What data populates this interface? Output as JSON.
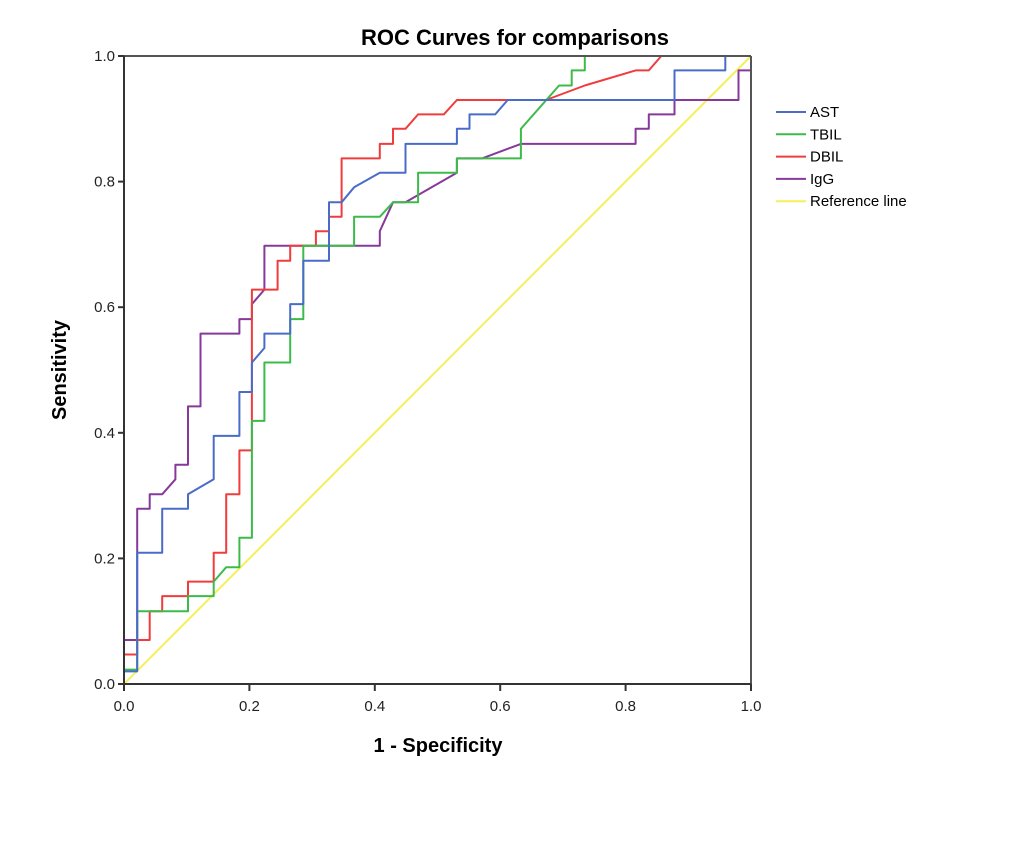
{
  "chart_data": {
    "type": "line",
    "title": "ROC Curves for comparisons",
    "xlabel": "1 - Specificity",
    "ylabel": "Sensitivity",
    "xlim": [
      0,
      1
    ],
    "ylim": [
      0,
      1
    ],
    "x_ticks": [
      "0.0",
      "0.2",
      "0.4",
      "0.6",
      "0.8",
      "1.0"
    ],
    "y_ticks": [
      "0.0",
      "0.2",
      "0.4",
      "0.6",
      "0.8",
      "1.0"
    ],
    "grid": false,
    "legend_position": "right",
    "series": [
      {
        "name": "AST",
        "color": "#4a6cc8",
        "points": [
          [
            0,
            0
          ],
          [
            0,
            0.02
          ],
          [
            0.021,
            0.02
          ],
          [
            0.021,
            0.209
          ],
          [
            0.061,
            0.209
          ],
          [
            0.061,
            0.279
          ],
          [
            0.102,
            0.279
          ],
          [
            0.102,
            0.302
          ],
          [
            0.143,
            0.326
          ],
          [
            0.143,
            0.395
          ],
          [
            0.184,
            0.395
          ],
          [
            0.184,
            0.465
          ],
          [
            0.204,
            0.465
          ],
          [
            0.204,
            0.512
          ],
          [
            0.224,
            0.535
          ],
          [
            0.224,
            0.558
          ],
          [
            0.265,
            0.558
          ],
          [
            0.265,
            0.605
          ],
          [
            0.286,
            0.605
          ],
          [
            0.286,
            0.674
          ],
          [
            0.327,
            0.674
          ],
          [
            0.327,
            0.767
          ],
          [
            0.347,
            0.767
          ],
          [
            0.367,
            0.791
          ],
          [
            0.408,
            0.814
          ],
          [
            0.449,
            0.814
          ],
          [
            0.449,
            0.86
          ],
          [
            0.531,
            0.86
          ],
          [
            0.531,
            0.884
          ],
          [
            0.551,
            0.884
          ],
          [
            0.551,
            0.907
          ],
          [
            0.592,
            0.907
          ],
          [
            0.612,
            0.93
          ],
          [
            0.878,
            0.93
          ],
          [
            0.878,
            0.977
          ],
          [
            0.959,
            0.977
          ],
          [
            0.959,
            1.0
          ],
          [
            1.0,
            1.0
          ]
        ]
      },
      {
        "name": "TBIL",
        "color": "#3dbb4a",
        "points": [
          [
            0,
            0
          ],
          [
            0,
            0.023
          ],
          [
            0.021,
            0.023
          ],
          [
            0.021,
            0.116
          ],
          [
            0.102,
            0.116
          ],
          [
            0.102,
            0.14
          ],
          [
            0.143,
            0.14
          ],
          [
            0.143,
            0.163
          ],
          [
            0.163,
            0.186
          ],
          [
            0.184,
            0.186
          ],
          [
            0.184,
            0.233
          ],
          [
            0.204,
            0.233
          ],
          [
            0.204,
            0.419
          ],
          [
            0.224,
            0.419
          ],
          [
            0.224,
            0.512
          ],
          [
            0.265,
            0.512
          ],
          [
            0.265,
            0.581
          ],
          [
            0.286,
            0.581
          ],
          [
            0.286,
            0.698
          ],
          [
            0.367,
            0.698
          ],
          [
            0.367,
            0.744
          ],
          [
            0.408,
            0.744
          ],
          [
            0.429,
            0.767
          ],
          [
            0.469,
            0.767
          ],
          [
            0.469,
            0.814
          ],
          [
            0.531,
            0.814
          ],
          [
            0.531,
            0.837
          ],
          [
            0.633,
            0.837
          ],
          [
            0.633,
            0.884
          ],
          [
            0.694,
            0.953
          ],
          [
            0.714,
            0.953
          ],
          [
            0.714,
            0.977
          ],
          [
            0.735,
            0.977
          ],
          [
            0.735,
            1.0
          ],
          [
            1.0,
            1.0
          ]
        ]
      },
      {
        "name": "DBIL",
        "color": "#f03c3c",
        "points": [
          [
            0,
            0
          ],
          [
            0,
            0.047
          ],
          [
            0.021,
            0.047
          ],
          [
            0.021,
            0.07
          ],
          [
            0.041,
            0.07
          ],
          [
            0.041,
            0.116
          ],
          [
            0.061,
            0.116
          ],
          [
            0.061,
            0.14
          ],
          [
            0.102,
            0.14
          ],
          [
            0.102,
            0.163
          ],
          [
            0.143,
            0.163
          ],
          [
            0.143,
            0.209
          ],
          [
            0.163,
            0.209
          ],
          [
            0.163,
            0.302
          ],
          [
            0.184,
            0.302
          ],
          [
            0.184,
            0.372
          ],
          [
            0.204,
            0.372
          ],
          [
            0.204,
            0.628
          ],
          [
            0.224,
            0.628
          ],
          [
            0.245,
            0.628
          ],
          [
            0.245,
            0.674
          ],
          [
            0.265,
            0.674
          ],
          [
            0.265,
            0.698
          ],
          [
            0.306,
            0.698
          ],
          [
            0.306,
            0.721
          ],
          [
            0.327,
            0.721
          ],
          [
            0.327,
            0.744
          ],
          [
            0.347,
            0.744
          ],
          [
            0.347,
            0.837
          ],
          [
            0.408,
            0.837
          ],
          [
            0.408,
            0.86
          ],
          [
            0.429,
            0.86
          ],
          [
            0.429,
            0.884
          ],
          [
            0.449,
            0.884
          ],
          [
            0.469,
            0.907
          ],
          [
            0.51,
            0.907
          ],
          [
            0.531,
            0.93
          ],
          [
            0.673,
            0.93
          ],
          [
            0.735,
            0.953
          ],
          [
            0.816,
            0.977
          ],
          [
            0.837,
            0.977
          ],
          [
            0.857,
            1.0
          ],
          [
            1.0,
            1.0
          ]
        ]
      },
      {
        "name": "IgG",
        "color": "#86399a",
        "points": [
          [
            0,
            0
          ],
          [
            0,
            0.07
          ],
          [
            0.021,
            0.07
          ],
          [
            0.021,
            0.279
          ],
          [
            0.041,
            0.279
          ],
          [
            0.041,
            0.302
          ],
          [
            0.061,
            0.302
          ],
          [
            0.082,
            0.326
          ],
          [
            0.082,
            0.349
          ],
          [
            0.102,
            0.349
          ],
          [
            0.102,
            0.442
          ],
          [
            0.122,
            0.442
          ],
          [
            0.122,
            0.558
          ],
          [
            0.184,
            0.558
          ],
          [
            0.184,
            0.581
          ],
          [
            0.204,
            0.581
          ],
          [
            0.204,
            0.605
          ],
          [
            0.224,
            0.628
          ],
          [
            0.224,
            0.698
          ],
          [
            0.408,
            0.698
          ],
          [
            0.408,
            0.721
          ],
          [
            0.429,
            0.767
          ],
          [
            0.449,
            0.767
          ],
          [
            0.531,
            0.814
          ],
          [
            0.531,
            0.837
          ],
          [
            0.571,
            0.837
          ],
          [
            0.633,
            0.86
          ],
          [
            0.816,
            0.86
          ],
          [
            0.816,
            0.884
          ],
          [
            0.837,
            0.884
          ],
          [
            0.837,
            0.907
          ],
          [
            0.878,
            0.907
          ],
          [
            0.878,
            0.93
          ],
          [
            0.98,
            0.93
          ],
          [
            0.98,
            0.977
          ],
          [
            1.0,
            0.977
          ],
          [
            1.0,
            1.0
          ]
        ]
      },
      {
        "name": "Reference line",
        "color": "#f5f05a",
        "points": [
          [
            0,
            0
          ],
          [
            1,
            1
          ]
        ]
      }
    ]
  }
}
